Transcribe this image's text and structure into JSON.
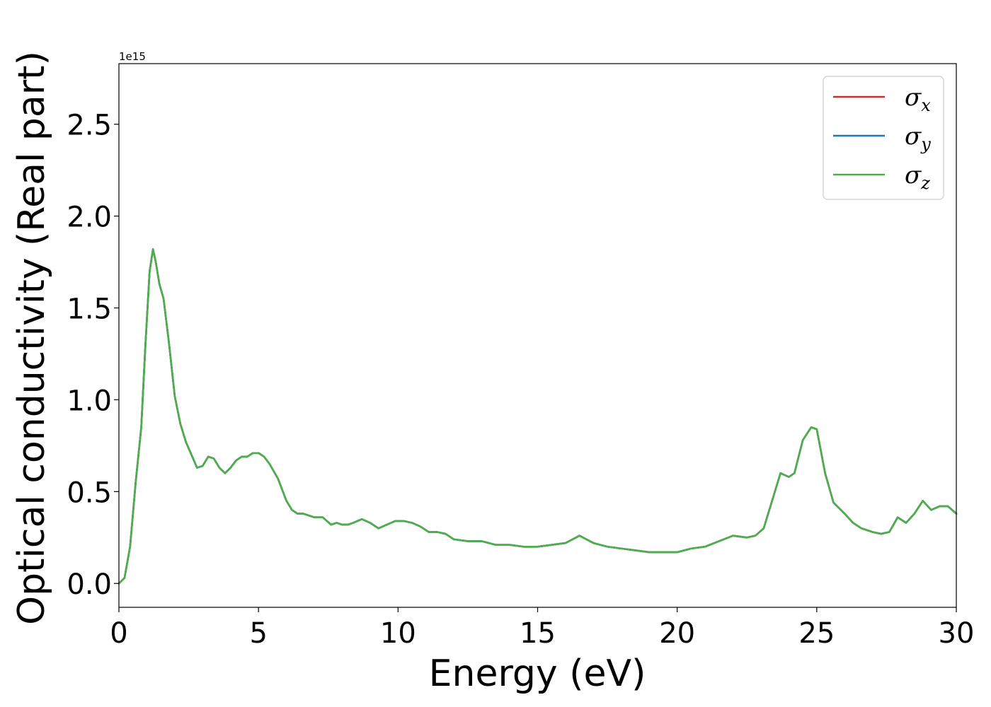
{
  "chart_data": {
    "type": "line",
    "xlabel": "Energy (eV)",
    "ylabel": "Optical conductivity (Real part)",
    "y_offset_label": "1e15",
    "xlim": [
      0,
      30
    ],
    "ylim": [
      -0.13,
      2.83
    ],
    "x_ticks": [
      0,
      5,
      10,
      15,
      20,
      25,
      30
    ],
    "x_tick_labels": [
      "0",
      "5",
      "10",
      "15",
      "20",
      "25",
      "30"
    ],
    "y_ticks": [
      0.0,
      0.5,
      1.0,
      1.5,
      2.0,
      2.5
    ],
    "y_tick_labels": [
      "0.0",
      "0.5",
      "1.0",
      "1.5",
      "2.0",
      "2.5"
    ],
    "grid": false,
    "legend_position": "top-right",
    "x": [
      0,
      0.2,
      0.4,
      0.6,
      0.8,
      0.95,
      1.1,
      1.22,
      1.32,
      1.45,
      1.6,
      1.8,
      2.0,
      2.2,
      2.4,
      2.6,
      2.8,
      3.0,
      3.2,
      3.4,
      3.6,
      3.8,
      4.0,
      4.2,
      4.4,
      4.6,
      4.8,
      5.0,
      5.2,
      5.4,
      5.7,
      6.0,
      6.2,
      6.4,
      6.6,
      6.8,
      7.0,
      7.3,
      7.6,
      7.8,
      8.0,
      8.2,
      8.4,
      8.7,
      9.0,
      9.3,
      9.6,
      9.9,
      10.2,
      10.5,
      10.8,
      11.1,
      11.4,
      11.7,
      12.0,
      12.5,
      13.0,
      13.5,
      14.0,
      14.5,
      15.0,
      15.5,
      16.0,
      16.5,
      17.0,
      17.5,
      18.0,
      18.5,
      19.0,
      19.5,
      20.0,
      20.5,
      21.0,
      21.5,
      22.0,
      22.5,
      22.8,
      23.1,
      23.4,
      23.7,
      24.0,
      24.2,
      24.5,
      24.8,
      25.0,
      25.3,
      25.6,
      26.0,
      26.3,
      26.6,
      27.0,
      27.3,
      27.6,
      27.9,
      28.2,
      28.5,
      28.8,
      29.1,
      29.4,
      29.7,
      30.0
    ],
    "series": [
      {
        "name": "σx",
        "color": "#d62728",
        "values": [
          0.0,
          0.03,
          0.2,
          0.55,
          0.85,
          1.3,
          1.7,
          1.82,
          1.75,
          1.63,
          1.55,
          1.3,
          1.02,
          0.87,
          0.77,
          0.7,
          0.63,
          0.64,
          0.69,
          0.68,
          0.63,
          0.6,
          0.63,
          0.67,
          0.69,
          0.69,
          0.71,
          0.71,
          0.69,
          0.65,
          0.57,
          0.45,
          0.4,
          0.38,
          0.38,
          0.37,
          0.36,
          0.36,
          0.32,
          0.33,
          0.32,
          0.32,
          0.33,
          0.35,
          0.33,
          0.3,
          0.32,
          0.34,
          0.34,
          0.33,
          0.31,
          0.28,
          0.28,
          0.27,
          0.24,
          0.23,
          0.23,
          0.21,
          0.21,
          0.2,
          0.2,
          0.21,
          0.22,
          0.26,
          0.22,
          0.2,
          0.19,
          0.18,
          0.17,
          0.17,
          0.17,
          0.19,
          0.2,
          0.23,
          0.26,
          0.25,
          0.26,
          0.3,
          0.45,
          0.6,
          0.58,
          0.6,
          0.78,
          0.85,
          0.84,
          0.6,
          0.44,
          0.38,
          0.33,
          0.3,
          0.28,
          0.27,
          0.28,
          0.36,
          0.33,
          0.38,
          0.45,
          0.4,
          0.42,
          0.42,
          0.38
        ]
      },
      {
        "name": "σy",
        "color": "#1f77b4",
        "values": [
          0.0,
          0.03,
          0.2,
          0.55,
          0.85,
          1.3,
          1.7,
          1.82,
          1.75,
          1.63,
          1.55,
          1.3,
          1.02,
          0.87,
          0.77,
          0.7,
          0.63,
          0.64,
          0.69,
          0.68,
          0.63,
          0.6,
          0.63,
          0.67,
          0.69,
          0.69,
          0.71,
          0.71,
          0.69,
          0.65,
          0.57,
          0.45,
          0.4,
          0.38,
          0.38,
          0.37,
          0.36,
          0.36,
          0.32,
          0.33,
          0.32,
          0.32,
          0.33,
          0.35,
          0.33,
          0.3,
          0.32,
          0.34,
          0.34,
          0.33,
          0.31,
          0.28,
          0.28,
          0.27,
          0.24,
          0.23,
          0.23,
          0.21,
          0.21,
          0.2,
          0.2,
          0.21,
          0.22,
          0.26,
          0.22,
          0.2,
          0.19,
          0.18,
          0.17,
          0.17,
          0.17,
          0.19,
          0.2,
          0.23,
          0.26,
          0.25,
          0.26,
          0.3,
          0.45,
          0.6,
          0.58,
          0.6,
          0.78,
          0.85,
          0.84,
          0.6,
          0.44,
          0.38,
          0.33,
          0.3,
          0.28,
          0.27,
          0.28,
          0.36,
          0.33,
          0.38,
          0.45,
          0.4,
          0.42,
          0.42,
          0.38
        ]
      },
      {
        "name": "σz",
        "color": "#4daf4a",
        "values": [
          0.0,
          0.03,
          0.2,
          0.55,
          0.85,
          1.3,
          1.7,
          1.82,
          1.75,
          1.63,
          1.55,
          1.3,
          1.02,
          0.87,
          0.77,
          0.7,
          0.63,
          0.64,
          0.69,
          0.68,
          0.63,
          0.6,
          0.63,
          0.67,
          0.69,
          0.69,
          0.71,
          0.71,
          0.69,
          0.65,
          0.57,
          0.45,
          0.4,
          0.38,
          0.38,
          0.37,
          0.36,
          0.36,
          0.32,
          0.33,
          0.32,
          0.32,
          0.33,
          0.35,
          0.33,
          0.3,
          0.32,
          0.34,
          0.34,
          0.33,
          0.31,
          0.28,
          0.28,
          0.27,
          0.24,
          0.23,
          0.23,
          0.21,
          0.21,
          0.2,
          0.2,
          0.21,
          0.22,
          0.26,
          0.22,
          0.2,
          0.19,
          0.18,
          0.17,
          0.17,
          0.17,
          0.19,
          0.2,
          0.23,
          0.26,
          0.25,
          0.26,
          0.3,
          0.45,
          0.6,
          0.58,
          0.6,
          0.78,
          0.85,
          0.84,
          0.6,
          0.44,
          0.38,
          0.33,
          0.3,
          0.28,
          0.27,
          0.28,
          0.36,
          0.33,
          0.38,
          0.45,
          0.4,
          0.42,
          0.42,
          0.38
        ]
      }
    ],
    "legend": [
      {
        "symbol": "σ",
        "subscript": "x",
        "color": "#d62728"
      },
      {
        "symbol": "σ",
        "subscript": "y",
        "color": "#1f77b4"
      },
      {
        "symbol": "σ",
        "subscript": "z",
        "color": "#4daf4a"
      }
    ]
  }
}
